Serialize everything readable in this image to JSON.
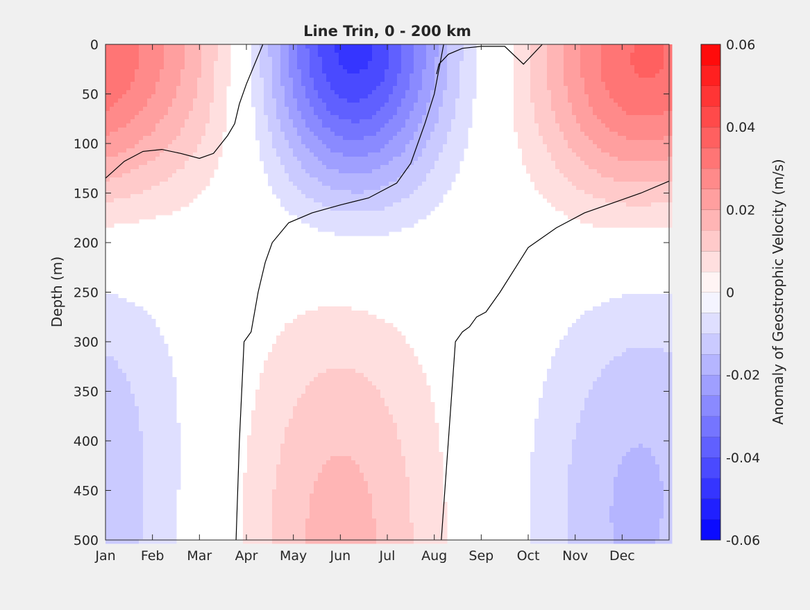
{
  "chart_data": {
    "type": "heatmap",
    "subtype": "filled-contour",
    "title": "Line Trin, 0 - 200 km",
    "xlabel": "",
    "ylabel": "Depth (m)",
    "x_categories": [
      "Jan",
      "Feb",
      "Mar",
      "Apr",
      "May",
      "Jun",
      "Jul",
      "Aug",
      "Sep",
      "Oct",
      "Nov",
      "Dec"
    ],
    "xlim": [
      0,
      12
    ],
    "y_ticks": [
      0,
      50,
      100,
      150,
      200,
      250,
      300,
      350,
      400,
      450,
      500
    ],
    "ylim": [
      0,
      500
    ],
    "y_reversed": true,
    "colorbar": {
      "label": "Anomaly of Geostrophic Velocity (m/s)",
      "clim": [
        -0.06,
        0.06
      ],
      "levels": 24,
      "ticks": [
        0.06,
        0.04,
        0.02,
        0,
        -0.02,
        -0.04,
        -0.06
      ],
      "tick_labels": [
        "0.06",
        "0.04",
        "0.02",
        "0",
        "-0.02",
        "-0.04",
        "-0.06"
      ],
      "colormap": [
        "#0000ff",
        "#ffffff",
        "#ff0000"
      ]
    },
    "features": [
      {
        "kind": "max",
        "month": 1.6,
        "depth": 0,
        "value": 0.014
      },
      {
        "kind": "min",
        "month": 5.25,
        "depth": 0,
        "value": -0.048
      },
      {
        "kind": "max",
        "month": 11.2,
        "depth": 20,
        "value": 0.032
      },
      {
        "kind": "max",
        "month": 5.0,
        "depth": 500,
        "value": 0.017
      },
      {
        "kind": "min",
        "month": 11.0,
        "depth": 500,
        "value": -0.012
      },
      {
        "kind": "min",
        "month": 0.15,
        "depth": 380,
        "value": -0.0058
      }
    ],
    "zero_contours": [
      {
        "month": [
          0,
          0.4,
          0.8,
          1.2,
          1.6,
          2.0,
          2.3,
          2.6,
          2.75,
          2.85,
          3.0,
          3.35
        ],
        "depth": [
          135,
          118,
          108,
          106,
          110,
          115,
          110,
          92,
          80,
          60,
          40,
          0
        ]
      },
      {
        "month": [
          2.78,
          2.85,
          2.95,
          3.1,
          3.25,
          3.4,
          3.55,
          3.9,
          4.4,
          5.0,
          5.6,
          6.2,
          6.5,
          6.8,
          7.0,
          7.2
        ],
        "depth": [
          500,
          400,
          300,
          290,
          250,
          220,
          200,
          180,
          170,
          162,
          155,
          140,
          120,
          80,
          50,
          0
        ]
      },
      {
        "month": [
          7.15,
          7.3,
          7.45,
          7.6,
          7.75,
          7.9,
          8.1,
          8.4,
          9.0,
          9.6,
          10.2,
          10.8,
          11.4,
          12.0
        ],
        "depth": [
          500,
          400,
          300,
          290,
          285,
          275,
          270,
          250,
          205,
          185,
          170,
          160,
          150,
          138
        ]
      },
      {
        "month": [
          7.05,
          7.1,
          7.3,
          7.6,
          8.0,
          8.5,
          8.9,
          9.3
        ],
        "depth": [
          30,
          20,
          10,
          4,
          2,
          2,
          20,
          0
        ]
      }
    ]
  }
}
